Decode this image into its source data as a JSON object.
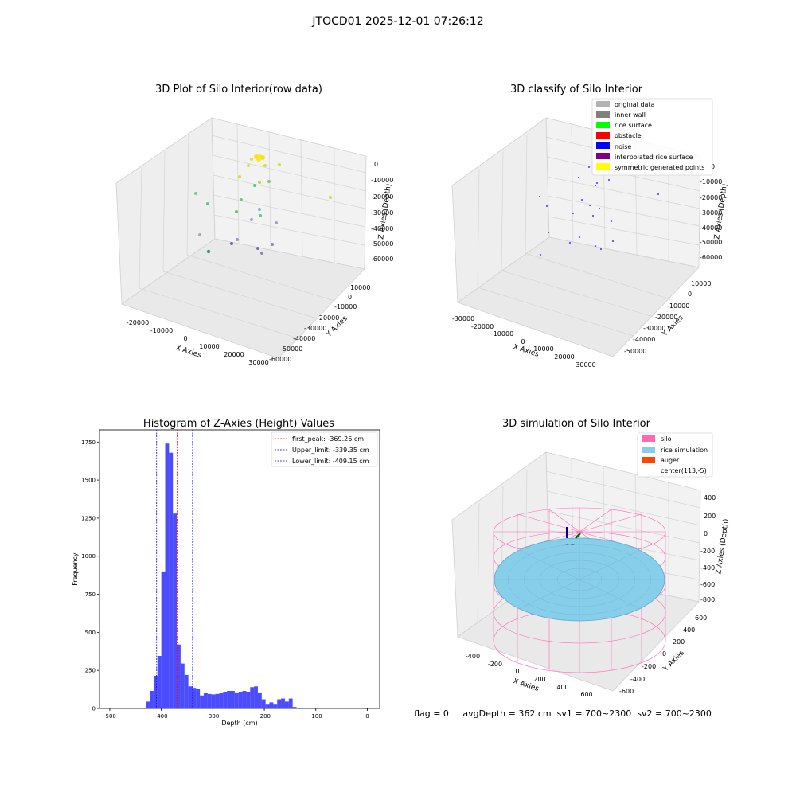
{
  "suptitle": "JTOCD01 2025-12-01 07:26:12",
  "panel_raw": {
    "title": "3D Plot of Silo Interior(row data)",
    "xlabel": "X Axies",
    "ylabel": "Y Axies",
    "zlabel": "Z Axies (Depth)",
    "xticks": [
      "-20000",
      "-10000",
      "0",
      "10000",
      "20000",
      "30000"
    ],
    "yticks": [
      "10000",
      "0",
      "-10000",
      "-20000",
      "-30000",
      "-40000",
      "-50000",
      "-60000"
    ],
    "zticks": [
      "0",
      "-10000",
      "-20000",
      "-30000",
      "-40000",
      "-50000",
      "-60000"
    ]
  },
  "panel_classify": {
    "title": "3D classify of Silo Interior",
    "xlabel": "X Axies",
    "ylabel": "Y Axies",
    "zlabel": "Z Axies (Depth)",
    "xticks": [
      "-30000",
      "-20000",
      "-10000",
      "0",
      "10000",
      "20000",
      "30000"
    ],
    "yticks": [
      "10000",
      "0",
      "-10000",
      "-20000",
      "-30000",
      "-40000",
      "-50000"
    ],
    "zticks": [
      "0",
      "-10000",
      "-20000",
      "-30000",
      "-40000",
      "-50000",
      "-60000"
    ],
    "legend": [
      {
        "label": "original data",
        "color": "#b3b3b3"
      },
      {
        "label": "inner wall",
        "color": "#808080"
      },
      {
        "label": "rice surface",
        "color": "#00ff00"
      },
      {
        "label": "obstacle",
        "color": "#ff0000"
      },
      {
        "label": "noise",
        "color": "#0000ff"
      },
      {
        "label": "interpolated rice surface",
        "color": "#800080"
      },
      {
        "label": "symmetric generated points",
        "color": "#ffff00"
      }
    ]
  },
  "panel_sim": {
    "title": "3D simulation of Silo Interior",
    "xlabel": "X Axies",
    "ylabel": "Y Axies",
    "zlabel": "Z Axies (Depth)",
    "xticks": [
      "-400",
      "-200",
      "0",
      "200",
      "400",
      "600"
    ],
    "yticks": [
      "600",
      "400",
      "200",
      "0",
      "-200",
      "-400",
      "-600"
    ],
    "zticks": [
      "400",
      "200",
      "0",
      "-200",
      "-400",
      "-600",
      "-800"
    ],
    "legend": [
      {
        "label": "silo",
        "color": "#ff69b4"
      },
      {
        "label": "rice simulation",
        "color": "#87ceeb"
      },
      {
        "label": "auger",
        "color": "#ff4500"
      },
      {
        "label": "center(113,-5)",
        "color": "none"
      }
    ],
    "status": "flag = 0     avgDepth = 362 cm  sv1 = 700~2300  sv2 = 700~2300"
  },
  "chart_data": [
    {
      "type": "bar",
      "title": "Histogram of Z-Axies (Height) Values",
      "xlabel": "Depth (cm)",
      "ylabel": "Frequency",
      "xlim": [
        -520,
        24
      ],
      "ylim": [
        0,
        1830
      ],
      "bin_width": 7.5,
      "xticks": [
        -500,
        -400,
        -300,
        -200,
        -100,
        0
      ],
      "yticks": [
        0,
        250,
        500,
        750,
        1000,
        1250,
        1500,
        1750
      ],
      "color": "#0000ff",
      "bins": [
        {
          "x": -437.5,
          "y": 5
        },
        {
          "x": -430,
          "y": 45
        },
        {
          "x": -422.5,
          "y": 115
        },
        {
          "x": -415,
          "y": 215
        },
        {
          "x": -407.5,
          "y": 345
        },
        {
          "x": -400,
          "y": 900
        },
        {
          "x": -392.5,
          "y": 1740
        },
        {
          "x": -385,
          "y": 1680
        },
        {
          "x": -377.5,
          "y": 1280
        },
        {
          "x": -370,
          "y": 420
        },
        {
          "x": -362.5,
          "y": 295
        },
        {
          "x": -355,
          "y": 220
        },
        {
          "x": -347.5,
          "y": 145
        },
        {
          "x": -340,
          "y": 135
        },
        {
          "x": -332.5,
          "y": 130
        },
        {
          "x": -325,
          "y": 85
        },
        {
          "x": -317.5,
          "y": 100
        },
        {
          "x": -310,
          "y": 95
        },
        {
          "x": -302.5,
          "y": 92
        },
        {
          "x": -295,
          "y": 95
        },
        {
          "x": -287.5,
          "y": 100
        },
        {
          "x": -280,
          "y": 110
        },
        {
          "x": -272.5,
          "y": 115
        },
        {
          "x": -265,
          "y": 115
        },
        {
          "x": -257.5,
          "y": 105
        },
        {
          "x": -250,
          "y": 110
        },
        {
          "x": -242.5,
          "y": 115
        },
        {
          "x": -235,
          "y": 110
        },
        {
          "x": -227.5,
          "y": 140
        },
        {
          "x": -220,
          "y": 145
        },
        {
          "x": -212.5,
          "y": 105
        },
        {
          "x": -205,
          "y": 60
        },
        {
          "x": -197.5,
          "y": 25
        },
        {
          "x": -190,
          "y": 40
        },
        {
          "x": -182.5,
          "y": 25
        },
        {
          "x": -175,
          "y": 60
        },
        {
          "x": -167.5,
          "y": 65
        },
        {
          "x": -160,
          "y": 45
        },
        {
          "x": -152.5,
          "y": 65
        },
        {
          "x": -145,
          "y": 10
        },
        {
          "x": -137.5,
          "y": 5
        }
      ],
      "vlines": [
        {
          "x": -369.26,
          "label": "first_peak: -369.26 cm",
          "color": "#ff0000"
        },
        {
          "x": -339.35,
          "label": "Upper_limit: -339.35 cm",
          "color": "#0000ff"
        },
        {
          "x": -409.15,
          "label": "Lower_limit: -409.15 cm",
          "color": "#0000ff"
        }
      ],
      "legend_position": "upper right"
    },
    {
      "type": "scatter",
      "title": "3D Plot of Silo Interior(row data)",
      "note_source": "panel_raw"
    }
  ]
}
